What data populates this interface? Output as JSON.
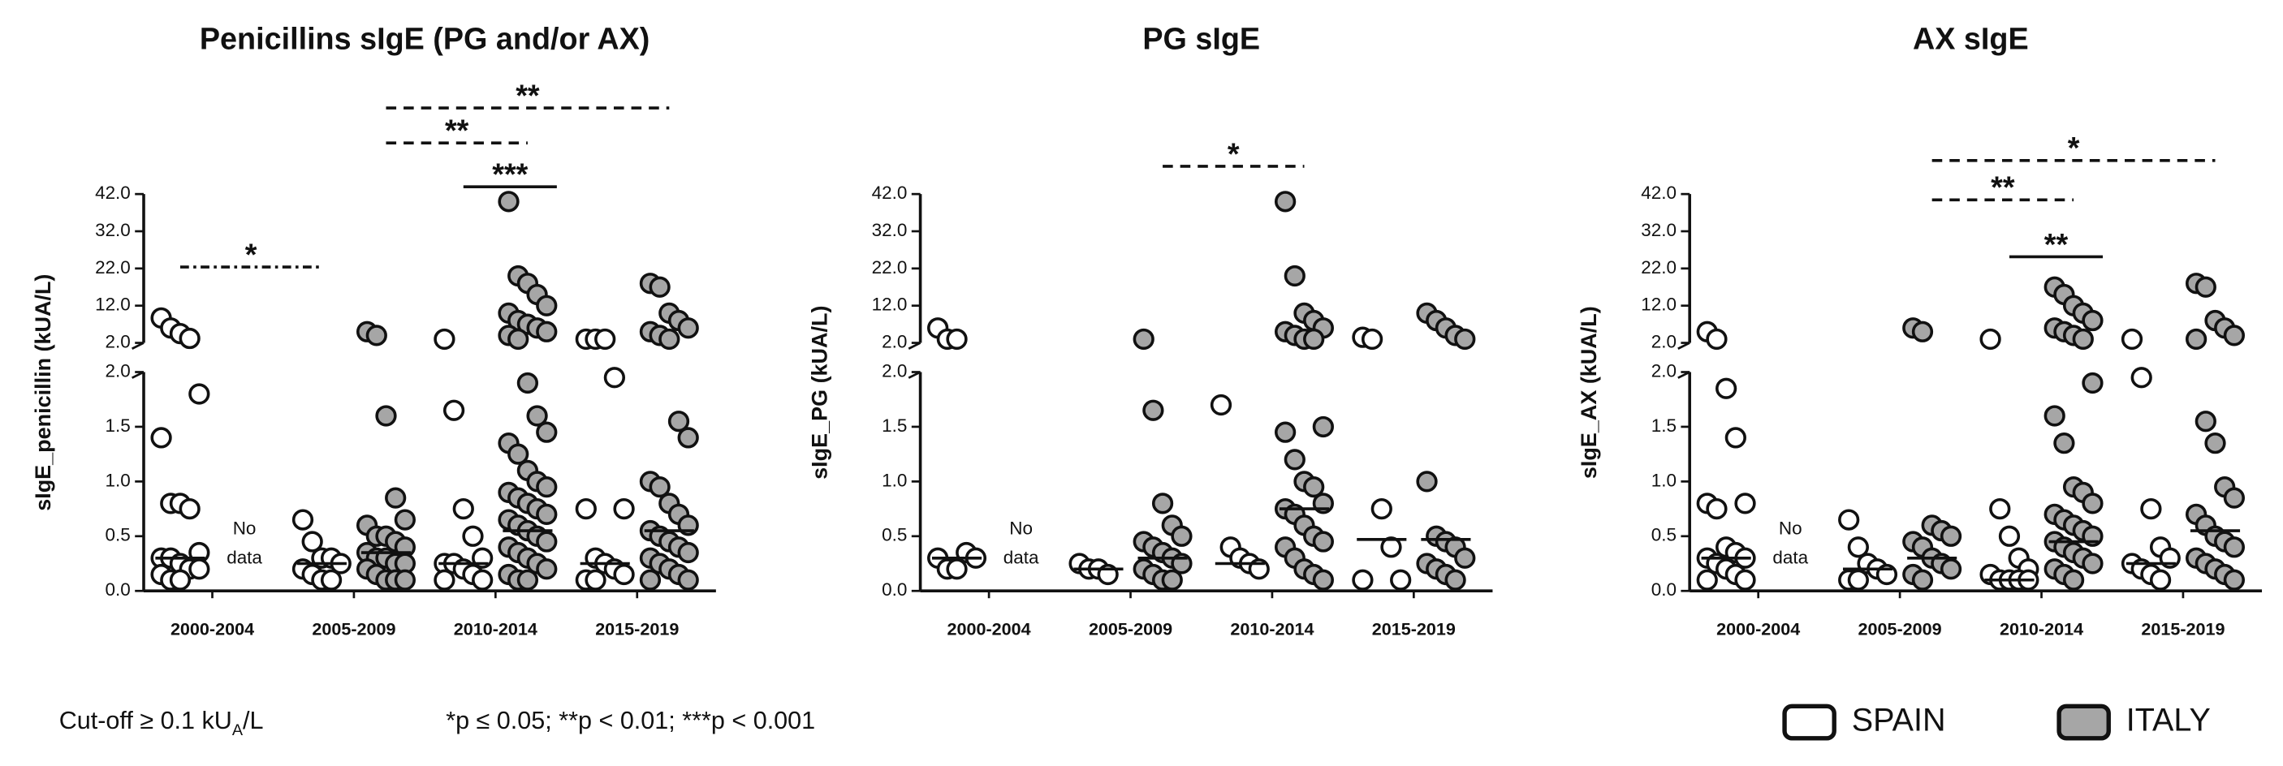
{
  "chart_data": [
    {
      "type": "dot",
      "title": "Penicillins sIgE (PG and/or AX)",
      "y_label": "sIgE_penicillin (kUA/L)",
      "categories": [
        "2000-2004",
        "2005-2009",
        "2010-2014",
        "2015-2019"
      ],
      "ylim": [
        0,
        2.0
      ],
      "yticks": [
        {
          "value": 0,
          "label": "0.0"
        },
        {
          "value": 0.5,
          "label": "0.5"
        },
        {
          "value": 1.0,
          "label": "1.0"
        },
        {
          "value": 1.5,
          "label": "1.5"
        },
        {
          "value": 2.0,
          "label": "2.0"
        }
      ],
      "ylim_upper": [
        2.0,
        42.0
      ],
      "yticks_upper": [
        {
          "value": 2.0,
          "label": "2.0"
        },
        {
          "value": 12.0,
          "label": "12.0"
        },
        {
          "value": 22.0,
          "label": "22.0"
        },
        {
          "value": 32.0,
          "label": "32.0"
        },
        {
          "value": 42.0,
          "label": "42.0"
        }
      ],
      "series": [
        {
          "name": "SPAIN",
          "color": "#ffffff",
          "values": [
            [
              8.7,
              6,
              4.5,
              3.2,
              1.8,
              1.4,
              0.8,
              0.8,
              0.75,
              0.35,
              0.3,
              0.3,
              0.25,
              0.2,
              0.2,
              0.15,
              0.1,
              0.1
            ],
            [
              0.65,
              0.45,
              0.3,
              0.3,
              0.25,
              0.2,
              0.15,
              0.1,
              0.1
            ],
            [
              3,
              1.65,
              0.75,
              0.5,
              0.3,
              0.25,
              0.25,
              0.2,
              0.15,
              0.1,
              0.1
            ],
            [
              3,
              3,
              3,
              1.95,
              0.75,
              0.75,
              0.3,
              0.25,
              0.2,
              0.15,
              0.1,
              0.1
            ]
          ],
          "medians": [
            0.3,
            0.25,
            0.25,
            0.25
          ]
        },
        {
          "name": "ITALY",
          "color": "#a6a6a6",
          "values": [
            null,
            [
              5,
              4,
              1.6,
              0.85,
              0.65,
              0.6,
              0.5,
              0.5,
              0.45,
              0.4,
              0.35,
              0.3,
              0.3,
              0.25,
              0.25,
              0.2,
              0.15,
              0.1,
              0.1,
              0.1
            ],
            [
              40,
              20,
              18,
              15,
              12,
              10,
              8,
              7,
              6,
              5,
              4,
              3,
              1.9,
              1.6,
              1.45,
              1.35,
              1.25,
              1.1,
              1.0,
              0.95,
              0.9,
              0.85,
              0.8,
              0.75,
              0.7,
              0.65,
              0.6,
              0.55,
              0.5,
              0.45,
              0.4,
              0.35,
              0.3,
              0.25,
              0.2,
              0.15,
              0.1,
              0.1
            ],
            [
              18,
              17,
              10,
              8,
              6,
              5,
              4,
              3,
              1.55,
              1.4,
              1.0,
              0.95,
              0.8,
              0.7,
              0.6,
              0.55,
              0.5,
              0.45,
              0.4,
              0.35,
              0.3,
              0.25,
              0.2,
              0.15,
              0.1,
              0.1
            ]
          ],
          "medians": [
            null,
            0.35,
            0.55,
            0.55
          ]
        }
      ],
      "no_data_label": [
        "No",
        "data"
      ],
      "comparisons": [
        {
          "from": [
            "2000-2004",
            "SPAIN"
          ],
          "to": [
            "2005-2009",
            "SPAIN"
          ],
          "label": "*",
          "style": "dash-dot"
        },
        {
          "from": [
            "2010-2014",
            "SPAIN"
          ],
          "to": [
            "2010-2014",
            "ITALY"
          ],
          "label": "***",
          "style": "solid"
        },
        {
          "from": [
            "2005-2009",
            "ITALY"
          ],
          "to": [
            "2010-2014",
            "ITALY"
          ],
          "label": "**",
          "style": "dashed"
        },
        {
          "from": [
            "2005-2009",
            "ITALY"
          ],
          "to": [
            "2015-2019",
            "ITALY"
          ],
          "label": "**",
          "style": "dashed"
        }
      ]
    },
    {
      "type": "dot",
      "title": "PG sIgE",
      "y_label": "sIgE_PG (kUA/L)",
      "categories": [
        "2000-2004",
        "2005-2009",
        "2010-2014",
        "2015-2019"
      ],
      "ylim": [
        0,
        2.0
      ],
      "yticks": [
        {
          "value": 0,
          "label": "0.0"
        },
        {
          "value": 0.5,
          "label": "0.5"
        },
        {
          "value": 1.0,
          "label": "1.0"
        },
        {
          "value": 1.5,
          "label": "1.5"
        },
        {
          "value": 2.0,
          "label": "2.0"
        }
      ],
      "ylim_upper": [
        2.0,
        42.0
      ],
      "yticks_upper": [
        {
          "value": 2.0,
          "label": "2.0"
        },
        {
          "value": 12.0,
          "label": "12.0"
        },
        {
          "value": 22.0,
          "label": "22.0"
        },
        {
          "value": 32.0,
          "label": "32.0"
        },
        {
          "value": 42.0,
          "label": "42.0"
        }
      ],
      "series": [
        {
          "name": "SPAIN",
          "color": "#ffffff",
          "values": [
            [
              6,
              3,
              3,
              0.35,
              0.3,
              0.3,
              0.2,
              0.2
            ],
            [
              0.25,
              0.2,
              0.2,
              0.15
            ],
            [
              1.7,
              0.4,
              0.3,
              0.25,
              0.2
            ],
            [
              3.5,
              3,
              0.75,
              0.4,
              0.1,
              0.1
            ]
          ],
          "medians": [
            0.3,
            0.2,
            0.25,
            0.47
          ]
        },
        {
          "name": "ITALY",
          "color": "#a6a6a6",
          "values": [
            null,
            [
              3,
              1.65,
              0.8,
              0.6,
              0.5,
              0.45,
              0.4,
              0.35,
              0.3,
              0.25,
              0.2,
              0.15,
              0.1,
              0.1
            ],
            [
              40,
              20,
              10,
              8,
              6,
              5,
              4,
              3,
              3,
              1.5,
              1.45,
              1.2,
              1.0,
              0.95,
              0.8,
              0.75,
              0.7,
              0.6,
              0.5,
              0.45,
              0.4,
              0.3,
              0.2,
              0.15,
              0.1
            ],
            [
              10,
              8,
              6,
              4,
              3,
              1.0,
              0.5,
              0.45,
              0.4,
              0.3,
              0.25,
              0.2,
              0.15,
              0.1
            ]
          ],
          "medians": [
            null,
            0.3,
            0.75,
            0.47
          ]
        }
      ],
      "no_data_label": [
        "No",
        "data"
      ],
      "comparisons": [
        {
          "from": [
            "2005-2009",
            "ITALY"
          ],
          "to": [
            "2010-2014",
            "ITALY"
          ],
          "label": "*",
          "style": "dashed"
        }
      ]
    },
    {
      "type": "dot",
      "title": "AX sIgE",
      "y_label": "sIgE_AX (kUA/L)",
      "categories": [
        "2000-2004",
        "2005-2009",
        "2010-2014",
        "2015-2019"
      ],
      "ylim": [
        0,
        2.0
      ],
      "yticks": [
        {
          "value": 0,
          "label": "0.0"
        },
        {
          "value": 0.5,
          "label": "0.5"
        },
        {
          "value": 1.0,
          "label": "1.0"
        },
        {
          "value": 1.5,
          "label": "1.5"
        },
        {
          "value": 2.0,
          "label": "2.0"
        }
      ],
      "ylim_upper": [
        2.0,
        42.0
      ],
      "yticks_upper": [
        {
          "value": 2.0,
          "label": "2.0"
        },
        {
          "value": 12.0,
          "label": "12.0"
        },
        {
          "value": 22.0,
          "label": "22.0"
        },
        {
          "value": 32.0,
          "label": "32.0"
        },
        {
          "value": 42.0,
          "label": "42.0"
        }
      ],
      "series": [
        {
          "name": "SPAIN",
          "color": "#ffffff",
          "values": [
            [
              5,
              3,
              1.85,
              1.4,
              0.8,
              0.8,
              0.75,
              0.4,
              0.35,
              0.3,
              0.3,
              0.25,
              0.2,
              0.15,
              0.1,
              0.1
            ],
            [
              0.65,
              0.4,
              0.25,
              0.2,
              0.15,
              0.1,
              0.1
            ],
            [
              3,
              0.75,
              0.5,
              0.3,
              0.2,
              0.15,
              0.1,
              0.1,
              0.1,
              0.1
            ],
            [
              3,
              1.95,
              0.75,
              0.4,
              0.3,
              0.25,
              0.2,
              0.15,
              0.1
            ]
          ],
          "medians": [
            0.3,
            0.2,
            0.1,
            0.25
          ]
        },
        {
          "name": "ITALY",
          "color": "#a6a6a6",
          "values": [
            null,
            [
              6,
              5,
              0.6,
              0.55,
              0.5,
              0.45,
              0.4,
              0.3,
              0.25,
              0.2,
              0.15,
              0.1
            ],
            [
              17,
              15,
              12,
              10,
              8,
              6,
              5,
              4,
              3,
              1.9,
              1.6,
              1.35,
              0.95,
              0.9,
              0.8,
              0.7,
              0.65,
              0.6,
              0.55,
              0.5,
              0.45,
              0.4,
              0.35,
              0.3,
              0.25,
              0.2,
              0.15,
              0.1
            ],
            [
              18,
              17,
              8,
              6,
              4,
              3,
              1.55,
              1.35,
              0.95,
              0.85,
              0.7,
              0.6,
              0.5,
              0.45,
              0.4,
              0.3,
              0.25,
              0.2,
              0.15,
              0.1
            ]
          ],
          "medians": [
            null,
            0.3,
            0.45,
            0.55
          ]
        }
      ],
      "no_data_label": [
        "No",
        "data"
      ],
      "comparisons": [
        {
          "from": [
            "2010-2014",
            "SPAIN"
          ],
          "to": [
            "2010-2014",
            "ITALY"
          ],
          "label": "**",
          "style": "solid"
        },
        {
          "from": [
            "2005-2009",
            "ITALY"
          ],
          "to": [
            "2010-2014",
            "ITALY"
          ],
          "label": "**",
          "style": "dashed"
        },
        {
          "from": [
            "2005-2009",
            "ITALY"
          ],
          "to": [
            "2015-2019",
            "ITALY"
          ],
          "label": "*",
          "style": "dashed"
        }
      ]
    }
  ],
  "notes": {
    "cutoff": [
      "Cut-off ≥ 0.1 kU",
      "A",
      "/L"
    ],
    "significance": "*p ≤ 0.05; **p < 0.01; ***p < 0.001"
  }
}
